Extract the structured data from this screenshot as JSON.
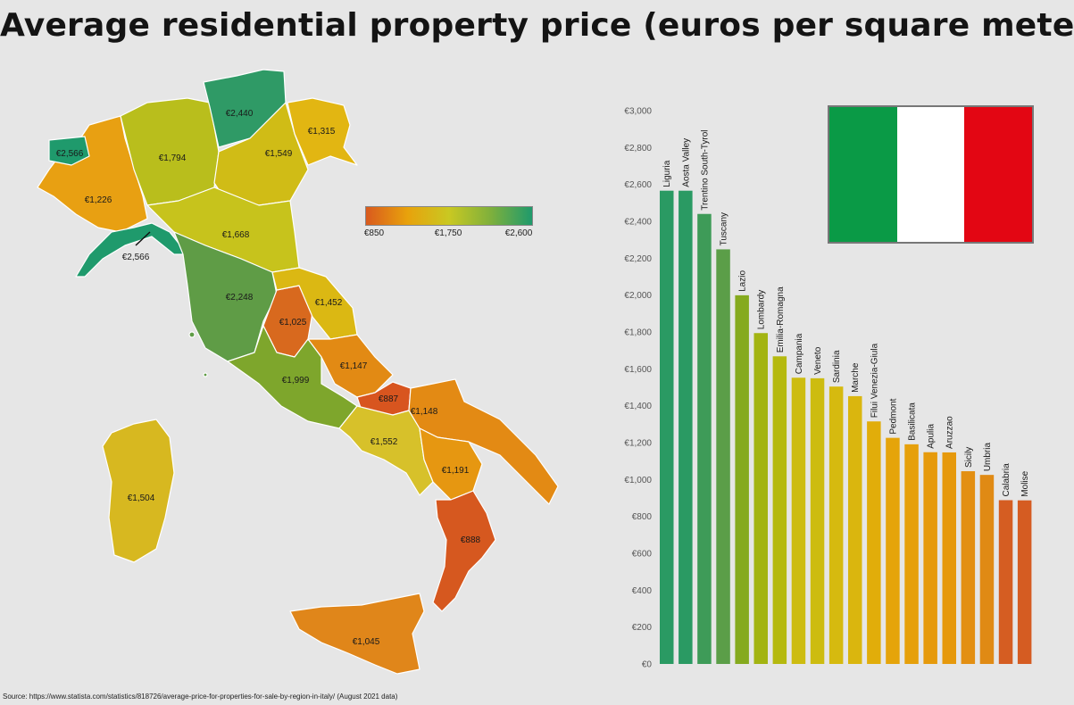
{
  "title": "Average residential property price (euros per square meter)",
  "source": "Source: https://www.statista.com/statistics/818726/average-price-for-properties-for-sale-by-region-in-italy/  (August 2021 data)",
  "flag": {
    "colors": [
      "#0a9a46",
      "#ffffff",
      "#e30613"
    ]
  },
  "legend": {
    "min_label": "€850",
    "mid_label": "€1,750",
    "max_label": "€2,600",
    "colors": [
      "#d95a1e",
      "#e8a20c",
      "#c9c822",
      "#7fb03c",
      "#1f9a6c"
    ]
  },
  "map_labels": {
    "aosta": "€2,566",
    "piedmont": "€1,226",
    "lombardy": "€1,794",
    "trentino": "€2,440",
    "veneto": "€1,549",
    "friuli": "€1,315",
    "liguria": "€2,566",
    "emilia": "€1,668",
    "tuscany": "€2,248",
    "umbria": "€1,025",
    "marche": "€1,452",
    "lazio": "€1,999",
    "abruzzo": "€1,147",
    "molise": "€887",
    "campania": "€1,552",
    "apulia": "€1,148",
    "basilicata": "€1,191",
    "calabria": "€888",
    "sicily": "€1,045",
    "sardinia": "€1,504"
  },
  "chart_data": {
    "type": "bar",
    "categories": [
      "Liguria",
      "Aosta Valley",
      "Trentino South-Tyrol",
      "Tuscany",
      "Lazio",
      "Lombardy",
      "Emilia-Romagna",
      "Campania",
      "Veneto",
      "Sardinia",
      "Marche",
      "Filui Venezia-Giula",
      "Pedmont",
      "Basilicata",
      "Apulia",
      "Aruzzao",
      "Sicily",
      "Umbria",
      "Calabria",
      "Molise"
    ],
    "values": [
      2566,
      2566,
      2440,
      2248,
      1999,
      1794,
      1668,
      1552,
      1549,
      1504,
      1452,
      1315,
      1226,
      1191,
      1148,
      1147,
      1045,
      1025,
      888,
      887
    ],
    "colors": [
      "#2a9a63",
      "#2a9a63",
      "#3e9b58",
      "#5b9e48",
      "#85aa1e",
      "#a3b412",
      "#b5b90f",
      "#cdbc10",
      "#cdbc10",
      "#d6ba0f",
      "#dab60e",
      "#e1ad0a",
      "#e5a40a",
      "#e6a00b",
      "#e69a0c",
      "#e6990c",
      "#e38f12",
      "#e08a14",
      "#d55d22",
      "#d55c22"
    ],
    "ylim": [
      0,
      3000
    ],
    "yticks": [
      0,
      200,
      400,
      600,
      800,
      1000,
      1200,
      1400,
      1600,
      1800,
      2000,
      2200,
      2400,
      2600,
      2800,
      3000
    ],
    "ytick_labels": [
      "€0",
      "€200",
      "€400",
      "€600",
      "€800",
      "€1,000",
      "€1,200",
      "€1,400",
      "€1,600",
      "€1,800",
      "€2,000",
      "€2,200",
      "€2,400",
      "€2,600",
      "€2,800",
      "€3,000"
    ],
    "grid": false,
    "legend": "none"
  }
}
